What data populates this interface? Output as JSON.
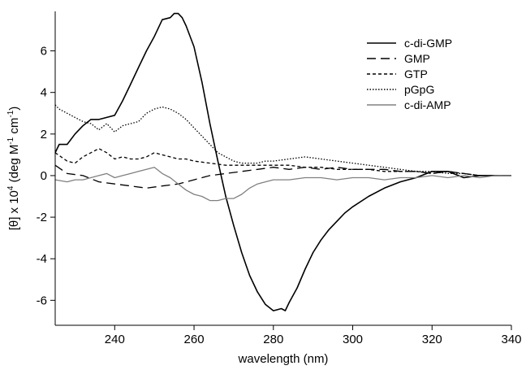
{
  "chart_data": {
    "type": "line",
    "xlabel": "wavelength (nm)",
    "ylabel_parts": {
      "a": "[θ] x 10",
      "a_sup": "4",
      "b": " (deg M",
      "b_sup": "-1",
      "c": " cm",
      "c_sup": "-1",
      "d": ")"
    },
    "xlim": [
      225,
      340
    ],
    "ylim": [
      -7.2,
      7.9
    ],
    "xticks": [
      240,
      260,
      280,
      300,
      320,
      340
    ],
    "yticks": [
      -6,
      -4,
      -2,
      0,
      2,
      4,
      6
    ],
    "grid": false,
    "legend_position": "top-right",
    "series": [
      {
        "name": "c-di-GMP",
        "color": "#000000",
        "dash": "none",
        "x": [
          225,
          226,
          228,
          230,
          232,
          234,
          236,
          238,
          240,
          242,
          244,
          246,
          248,
          250,
          252,
          254,
          255,
          256,
          257,
          258,
          260,
          262,
          264,
          266,
          268,
          270,
          272,
          274,
          276,
          278,
          280,
          282,
          283,
          284,
          286,
          288,
          290,
          292,
          294,
          296,
          298,
          300,
          304,
          308,
          312,
          316,
          320,
          324,
          328,
          332,
          336,
          340
        ],
        "values": [
          1.1,
          1.5,
          1.5,
          2.0,
          2.4,
          2.7,
          2.7,
          2.8,
          2.9,
          3.6,
          4.4,
          5.2,
          6.0,
          6.7,
          7.5,
          7.6,
          7.8,
          7.8,
          7.6,
          7.2,
          6.2,
          4.5,
          2.5,
          0.7,
          -1.0,
          -2.4,
          -3.7,
          -4.8,
          -5.6,
          -6.2,
          -6.5,
          -6.4,
          -6.5,
          -6.1,
          -5.4,
          -4.5,
          -3.7,
          -3.1,
          -2.6,
          -2.2,
          -1.8,
          -1.5,
          -1.0,
          -0.6,
          -0.3,
          -0.1,
          0.2,
          0.2,
          -0.1,
          0.0,
          0.0,
          0.0
        ]
      },
      {
        "name": "GMP",
        "color": "#000000",
        "dash": "11 6",
        "x": [
          225,
          228,
          232,
          236,
          240,
          244,
          248,
          252,
          256,
          260,
          264,
          268,
          272,
          276,
          280,
          284,
          288,
          292,
          296,
          300,
          304,
          308,
          312,
          316,
          320,
          324,
          328,
          332,
          336,
          340
        ],
        "values": [
          0.5,
          0.1,
          0.0,
          -0.3,
          -0.4,
          -0.5,
          -0.6,
          -0.5,
          -0.4,
          -0.2,
          0.0,
          0.1,
          0.2,
          0.3,
          0.4,
          0.3,
          0.4,
          0.3,
          0.4,
          0.3,
          0.3,
          0.3,
          0.2,
          0.2,
          0.1,
          0.2,
          0.1,
          0.0,
          0.0,
          0.0
        ]
      },
      {
        "name": "GTP",
        "color": "#000000",
        "dash": "4 3",
        "x": [
          225,
          228,
          230,
          232,
          234,
          236,
          238,
          240,
          242,
          244,
          246,
          248,
          250,
          252,
          254,
          256,
          258,
          260,
          264,
          268,
          272,
          276,
          280,
          284,
          288,
          292,
          296,
          300,
          304,
          308,
          312,
          316,
          320,
          324,
          328,
          332,
          336,
          340
        ],
        "values": [
          1.1,
          0.7,
          0.6,
          0.9,
          1.1,
          1.3,
          1.1,
          0.8,
          0.9,
          0.8,
          0.8,
          0.9,
          1.1,
          1.0,
          0.9,
          0.8,
          0.8,
          0.7,
          0.6,
          0.5,
          0.5,
          0.5,
          0.5,
          0.5,
          0.4,
          0.4,
          0.3,
          0.3,
          0.3,
          0.2,
          0.2,
          0.2,
          0.1,
          0.2,
          0.1,
          0.0,
          0.0,
          0.0
        ]
      },
      {
        "name": "pGpG",
        "color": "#000000",
        "dash": "1.5 2",
        "x": [
          225,
          226,
          228,
          230,
          232,
          234,
          236,
          238,
          240,
          242,
          244,
          246,
          248,
          250,
          252,
          254,
          256,
          258,
          260,
          262,
          264,
          266,
          268,
          270,
          272,
          274,
          276,
          278,
          280,
          284,
          288,
          292,
          296,
          300,
          304,
          308,
          312,
          316,
          320,
          324,
          328,
          332,
          336,
          340
        ],
        "values": [
          3.4,
          3.2,
          3.0,
          2.8,
          2.6,
          2.5,
          2.2,
          2.5,
          2.1,
          2.4,
          2.5,
          2.6,
          3.0,
          3.2,
          3.3,
          3.2,
          3.0,
          2.7,
          2.3,
          1.9,
          1.5,
          1.1,
          0.9,
          0.7,
          0.6,
          0.6,
          0.6,
          0.7,
          0.7,
          0.8,
          0.9,
          0.8,
          0.7,
          0.6,
          0.5,
          0.4,
          0.3,
          0.2,
          0.2,
          0.1,
          0.1,
          0.0,
          0.0,
          0.0
        ]
      },
      {
        "name": "c-di-AMP",
        "color": "#808080",
        "dash": "none",
        "x": [
          225,
          228,
          230,
          232,
          234,
          236,
          238,
          240,
          242,
          244,
          246,
          248,
          250,
          252,
          254,
          256,
          258,
          260,
          262,
          264,
          266,
          268,
          270,
          272,
          274,
          276,
          278,
          280,
          284,
          288,
          292,
          296,
          300,
          304,
          308,
          312,
          316,
          320,
          324,
          328,
          332,
          336,
          340
        ],
        "values": [
          -0.2,
          -0.3,
          -0.2,
          -0.2,
          -0.1,
          0.0,
          0.1,
          -0.1,
          0.0,
          0.1,
          0.2,
          0.3,
          0.4,
          0.1,
          -0.1,
          -0.4,
          -0.7,
          -0.9,
          -1.0,
          -1.2,
          -1.2,
          -1.1,
          -1.1,
          -0.9,
          -0.6,
          -0.4,
          -0.3,
          -0.2,
          -0.2,
          -0.1,
          -0.1,
          -0.2,
          -0.1,
          -0.1,
          -0.2,
          -0.1,
          -0.1,
          0.0,
          -0.1,
          0.0,
          -0.1,
          0.0,
          0.0
        ]
      }
    ]
  }
}
